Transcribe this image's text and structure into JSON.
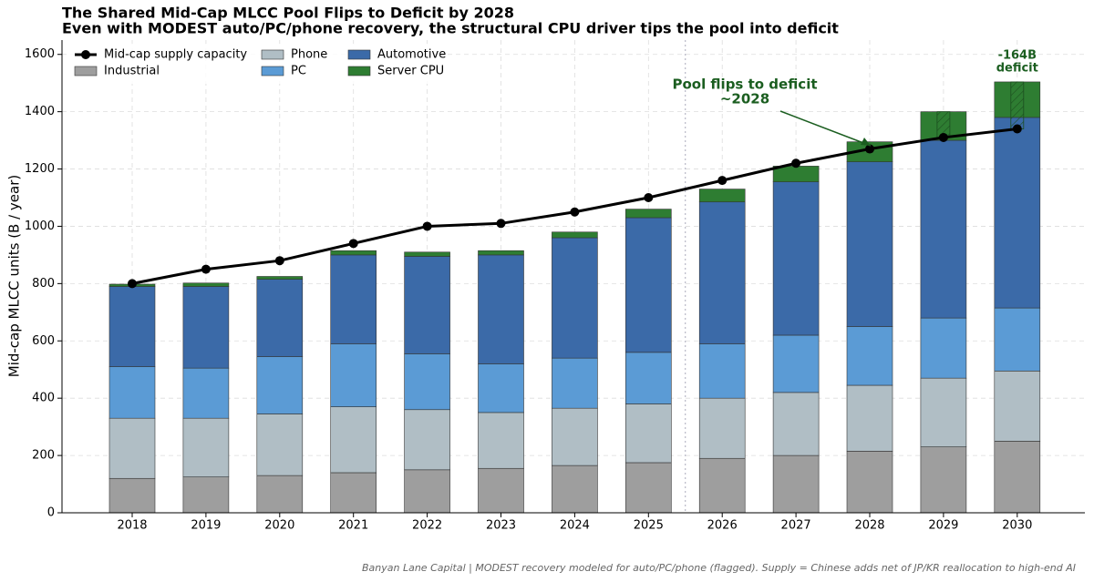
{
  "chart_data": {
    "type": "stacked-bar-line",
    "title": "The Shared Mid-Cap MLCC Pool Flips to Deficit by 2028",
    "subtitle": "Even with MODEST auto/PC/phone recovery, the structural CPU driver tips the pool into deficit",
    "y_label": "Mid-cap MLCC units (B / year)",
    "categories": [
      "2018",
      "2019",
      "2020",
      "2021",
      "2022",
      "2023",
      "2024",
      "2025",
      "2026",
      "2027",
      "2028",
      "2029",
      "2030"
    ],
    "series": [
      {
        "name": "Industrial",
        "color": "#9e9e9e",
        "values": [
          120,
          125,
          130,
          140,
          150,
          155,
          165,
          175,
          190,
          200,
          215,
          230,
          250
        ]
      },
      {
        "name": "Phone",
        "color": "#b0bec5",
        "values": [
          210,
          205,
          215,
          230,
          210,
          195,
          200,
          205,
          210,
          220,
          230,
          240,
          245
        ]
      },
      {
        "name": "PC",
        "color": "#5b9bd5",
        "values": [
          180,
          175,
          200,
          220,
          195,
          170,
          175,
          180,
          190,
          200,
          205,
          210,
          220
        ]
      },
      {
        "name": "Automotive",
        "color": "#3b6aa8",
        "values": [
          280,
          285,
          270,
          310,
          340,
          380,
          420,
          470,
          495,
          535,
          575,
          620,
          665
        ]
      },
      {
        "name": "Server CPU",
        "color": "#2e7d32",
        "values": [
          8,
          12,
          10,
          15,
          15,
          15,
          20,
          30,
          45,
          55,
          70,
          100,
          124
        ]
      }
    ],
    "line": {
      "name": "Mid-cap supply capacity",
      "color": "#000000",
      "values": [
        800,
        850,
        880,
        940,
        1000,
        1010,
        1050,
        1100,
        1160,
        1220,
        1270,
        1310,
        1340
      ]
    },
    "ylim": [
      0,
      1650
    ],
    "yticks": [
      0,
      200,
      400,
      600,
      800,
      1000,
      1200,
      1400,
      1600
    ],
    "grid": true,
    "annotations": [
      {
        "lines": [
          "Pool flips to deficit",
          "~2028"
        ],
        "color": "#1b5e20"
      },
      {
        "lines": [
          "-164B",
          "deficit"
        ],
        "color": "#1b5e20"
      }
    ],
    "footer": "Banyan Lane Capital | MODEST recovery modeled for auto/PC/phone (flagged). Supply = Chinese adds net of JP/KR reallocation to high-end AI"
  }
}
